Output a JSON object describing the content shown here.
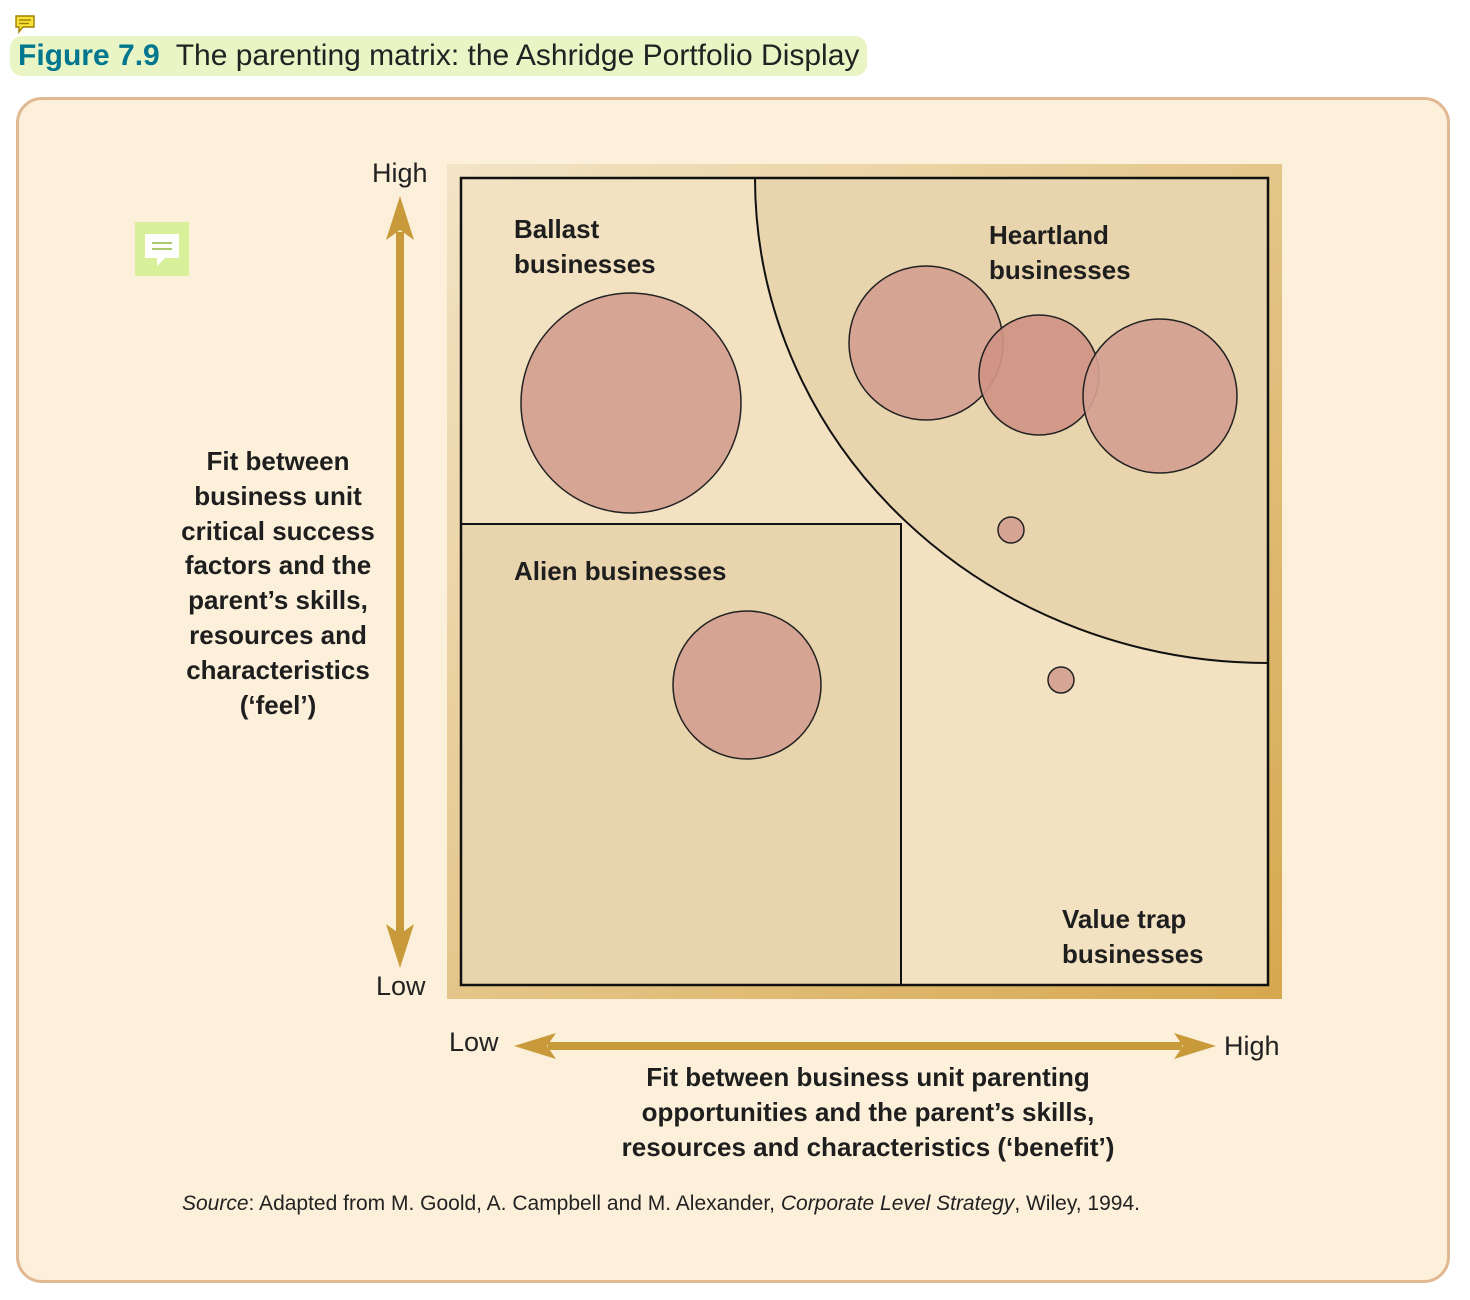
{
  "figure": {
    "number": "Figure 7.9",
    "title": "The parenting matrix: the Ashridge Portfolio Display"
  },
  "y_axis": {
    "high": "High",
    "low": "Low",
    "label": "Fit between\nbusiness unit\ncritical success\nfactors and the\nparent’s skills,\nresources and\ncharacteristics\n(‘feel’)"
  },
  "x_axis": {
    "low": "Low",
    "high": "High",
    "label": "Fit between business unit parenting\nopportunities and the parent’s skills,\nresources and characteristics (‘benefit’)"
  },
  "regions": {
    "ballast": "Ballast\nbusinesses",
    "heartland": "Heartland\nbusinesses",
    "alien": "Alien businesses",
    "value_trap": "Value trap\nbusinesses"
  },
  "source": {
    "prefix": "Source",
    "text_before": ": Adapted from M. Goold, A. Campbell and M. Alexander, ",
    "book": "Corporate Level Strategy",
    "text_after": ", Wiley, 1994."
  },
  "colors": {
    "accent_title": "#00778f",
    "arrow_gold": "#c99a3a",
    "bubble_fill": "#d4a090",
    "panel_bg": "#fcf0da",
    "panel_border": "#e0b892"
  },
  "icons": [
    "comment-note-icon",
    "comment-note-icon"
  ]
}
